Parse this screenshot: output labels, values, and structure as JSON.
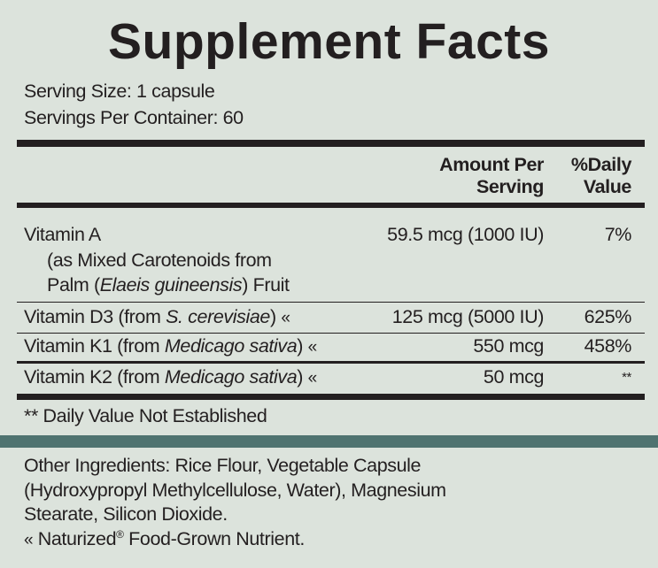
{
  "title": "Supplement Facts",
  "serving_size": "Serving Size: 1 capsule",
  "servings_per_container": "Servings Per Container: 60",
  "header": {
    "amount_line1": "Amount Per",
    "amount_line2": "Serving",
    "dv_line1": "%Daily",
    "dv_line2": "Value"
  },
  "rows": [
    {
      "name": "Vitamin A",
      "sub1": "(as Mixed Carotenoids from",
      "sub2_pre": "Palm (",
      "sub2_italic": "Elaeis guineensis",
      "sub2_post": ") Fruit",
      "amount": "59.5 mcg (1000 IU)",
      "dv": "7%"
    },
    {
      "name_pre": "Vitamin D3 (from ",
      "name_italic": "S. cerevisiae",
      "name_post": ")",
      "amount": "125 mcg (5000 IU)",
      "dv": "625%"
    },
    {
      "name_pre": "Vitamin K1 (from ",
      "name_italic": "Medicago sativa",
      "name_post": ")",
      "amount": "550 mcg",
      "dv": "458%"
    },
    {
      "name_pre": "Vitamin K2 (from ",
      "name_italic": "Medicago sativa",
      "name_post": ")",
      "amount": "50 mcg",
      "dv": "**"
    }
  ],
  "naturized_symbol": "«",
  "footnote": "** Daily Value Not Established",
  "other_ingredients": [
    "Other Ingredients: Rice Flour, Vegetable Capsule",
    "(Hydroxypropyl Methylcellulose, Water), Magnesium",
    "Stearate, Silicon Dioxide."
  ],
  "naturized_note": {
    "pre": "Naturized",
    "reg": "®",
    "post": " Food-Grown Nutrient."
  },
  "colors": {
    "background": "#dce3dc",
    "band": "#4f7370",
    "text": "#231f20"
  }
}
